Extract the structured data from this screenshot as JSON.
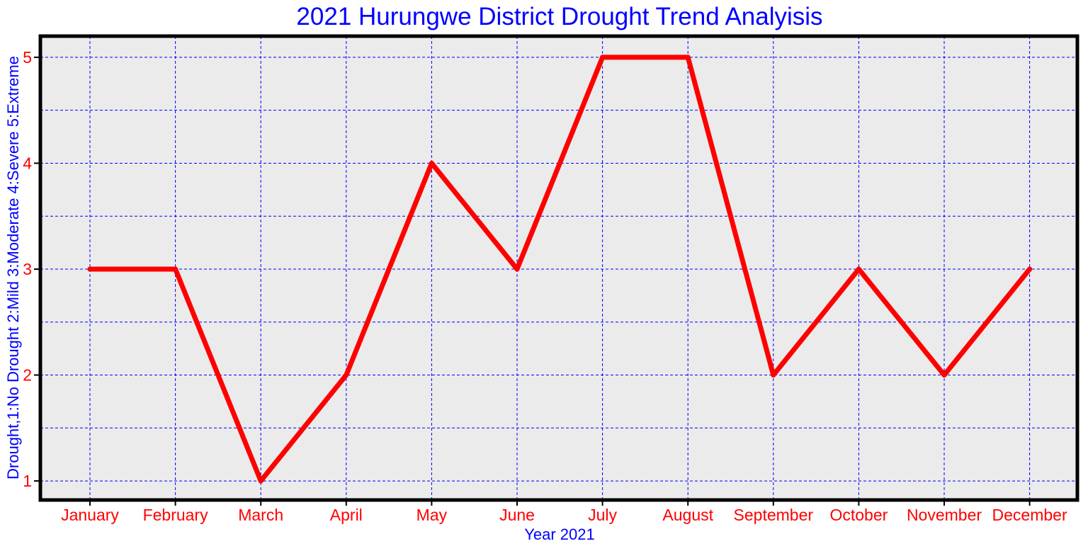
{
  "chart_data": {
    "type": "line",
    "title": "2021 Hurungwe District Drought Trend Analyisis",
    "xlabel": "Year 2021",
    "ylabel": "Drought,1:No Drought 2:Mild 3:Moderate 4:Severe 5:Extreme",
    "categories": [
      "January",
      "February",
      "March",
      "April",
      "May",
      "June",
      "July",
      "August",
      "September",
      "October",
      "November",
      "December"
    ],
    "series": [
      {
        "values": [
          3,
          3,
          1,
          2,
          4,
          3,
          5,
          5,
          2,
          3,
          2,
          3
        ],
        "color": "#ff0000"
      }
    ],
    "ylim": [
      0.82,
      5.2
    ],
    "yticks": [
      1,
      2,
      3,
      4,
      5
    ],
    "grid": true,
    "grid_color": "#0000ff",
    "plot_background": "#ebebeb",
    "title_color": "#0000ff",
    "tick_label_color": "#ff0000",
    "axis_label_color": "#0000ff"
  }
}
